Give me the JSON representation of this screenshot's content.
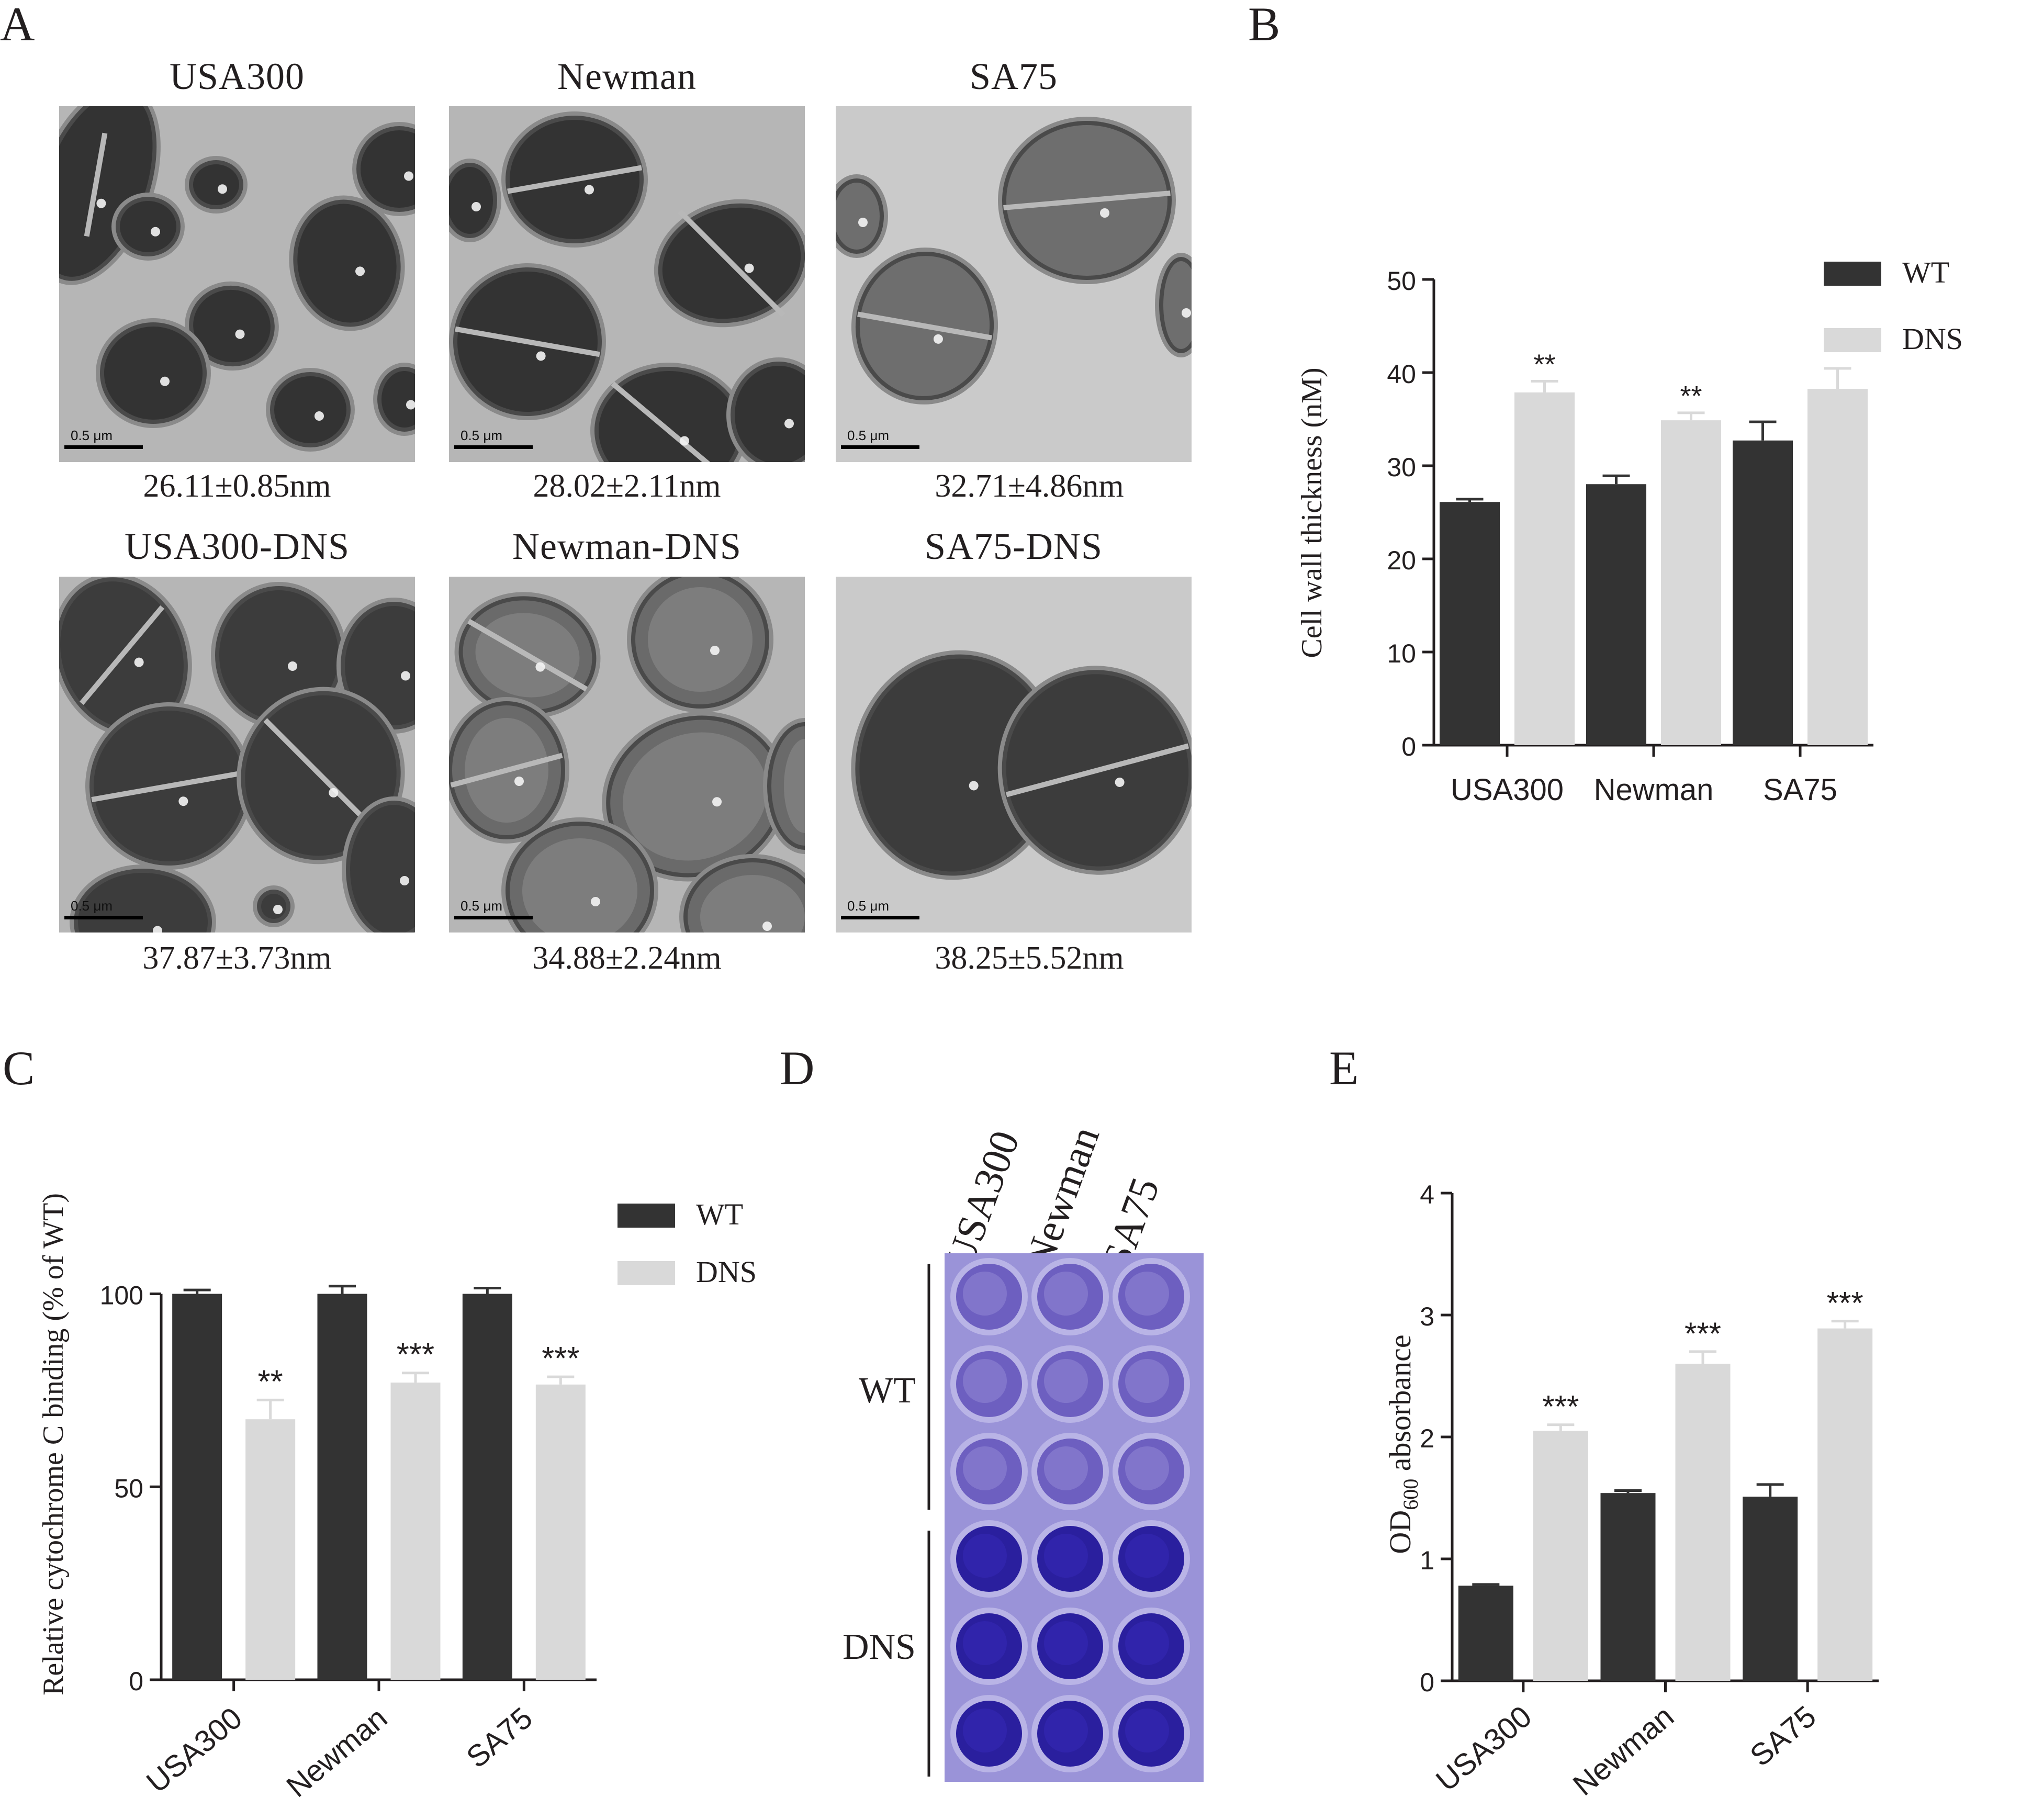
{
  "panels": {
    "A": "A",
    "B": "B",
    "C": "C",
    "D": "D",
    "E": "E"
  },
  "micrographs": [
    {
      "title": "USA300",
      "caption": "26.11±0.85nm",
      "scale": "0.5 μm"
    },
    {
      "title": "Newman",
      "caption": "28.02±2.11nm",
      "scale": "0.5 μm"
    },
    {
      "title": "SA75",
      "caption": "32.71±4.86nm",
      "scale": "0.5 μm"
    },
    {
      "title": "USA300-DNS",
      "caption": "37.87±3.73nm",
      "scale": "0.5 μm"
    },
    {
      "title": "Newman-DNS",
      "caption": "34.88±2.24nm",
      "scale": "0.5 μm"
    },
    {
      "title": "SA75-DNS",
      "caption": "38.25±5.52nm",
      "scale": "0.5 μm"
    }
  ],
  "plate": {
    "columns": [
      "USA300",
      "Newman",
      "SA75"
    ],
    "row_groups": [
      "WT",
      "DNS"
    ],
    "colors": {
      "wt_well": "#6d5fc0",
      "dns_well": "#2a1f9e",
      "background": "#9a93d8"
    }
  },
  "colors": {
    "wt": "#333333",
    "dns": "#d9d9d9",
    "axis": "#231f20"
  },
  "chart_data": [
    {
      "panel": "B",
      "type": "bar",
      "categories": [
        "USA300",
        "Newman",
        "SA75"
      ],
      "series": [
        {
          "name": "WT",
          "values": [
            26.11,
            28.02,
            32.71
          ],
          "errors": [
            0.3,
            0.9,
            2.0
          ]
        },
        {
          "name": "DNS",
          "values": [
            37.87,
            34.88,
            38.25
          ],
          "errors": [
            1.2,
            0.8,
            2.2
          ]
        }
      ],
      "significance": [
        "**",
        "**",
        "*"
      ],
      "ylabel": "Cell wall thickness (nM)",
      "ylim": [
        0,
        50
      ],
      "yticks": [
        0,
        10,
        20,
        30,
        40,
        50
      ],
      "legend": "top-right",
      "grid": false
    },
    {
      "panel": "C",
      "type": "bar",
      "categories": [
        "USA300",
        "Newman",
        "SA75"
      ],
      "series": [
        {
          "name": "WT",
          "values": [
            100,
            100,
            100
          ],
          "errors": [
            1.0,
            2.0,
            1.5
          ]
        },
        {
          "name": "DNS",
          "values": [
            67.5,
            77,
            76.5
          ],
          "errors": [
            5.0,
            2.5,
            2.0
          ]
        }
      ],
      "significance": [
        "**",
        "***",
        "***"
      ],
      "ylabel": "Relative cytochrome C binding (% of WT)",
      "ylim": [
        0,
        120
      ],
      "yticks": [
        0,
        50,
        100
      ],
      "legend": "top-right",
      "grid": false
    },
    {
      "panel": "E",
      "type": "bar",
      "categories": [
        "USA300",
        "Newman",
        "SA75"
      ],
      "series": [
        {
          "name": "WT",
          "values": [
            0.78,
            1.54,
            1.51
          ],
          "errors": [
            0.01,
            0.02,
            0.1
          ]
        },
        {
          "name": "DNS",
          "values": [
            2.05,
            2.6,
            2.89
          ],
          "errors": [
            0.05,
            0.1,
            0.06
          ]
        }
      ],
      "significance": [
        "***",
        "***",
        "***"
      ],
      "ylabel": "OD600 absorbance",
      "ylabel_main": "OD",
      "ylabel_sub": "600",
      "ylabel_rest": " absorbance",
      "ylim": [
        0,
        4
      ],
      "yticks": [
        0,
        1,
        2,
        3,
        4
      ],
      "legend": "none",
      "grid": false
    }
  ]
}
